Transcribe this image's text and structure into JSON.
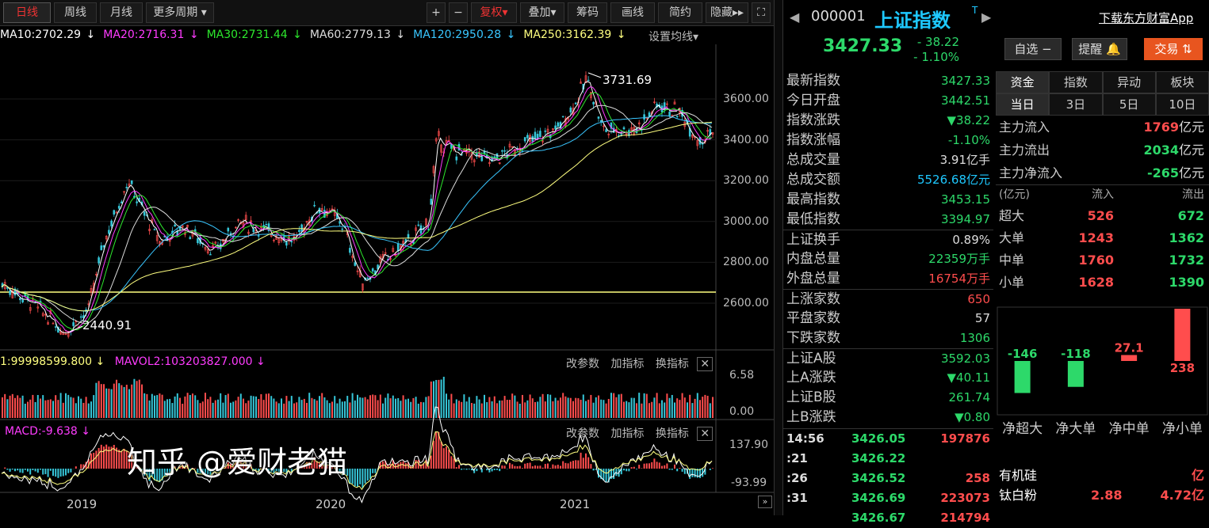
{
  "toolbar": {
    "tabs": [
      "日线",
      "周线",
      "月线",
      "更多周期"
    ],
    "right_buttons": [
      "+",
      "−",
      "复权",
      "叠加",
      "筹码",
      "画线",
      "简约",
      "隐藏"
    ]
  },
  "ma_line": [
    {
      "label": "MA10:2702.29",
      "color": "#ffffff"
    },
    {
      "label": "MA20:2716.31",
      "color": "#ff3cff"
    },
    {
      "label": "MA30:2731.44",
      "color": "#2de82d"
    },
    {
      "label": "MA60:2779.13",
      "color": "#dddddd"
    },
    {
      "label": "MA120:2950.28",
      "color": "#39c6ff"
    },
    {
      "label": "MA250:3162.39",
      "color": "#ffff80"
    }
  ],
  "ma_settings": "设置均线",
  "price_axis": [
    "3600.00",
    "3400.00",
    "3200.00",
    "3000.00",
    "2800.00",
    "2600.00"
  ],
  "annot_high": "3731.69",
  "annot_low": "2440.91",
  "vol_line": {
    "vol1": "1:99998599.800",
    "mavol2": "MAVOL2:103203827.000"
  },
  "vol_axis": [
    "6.58",
    "0.00"
  ],
  "macd_label": "MACD:-9.638",
  "macd_axis": [
    "137.90",
    "-93.99"
  ],
  "panel_buttons": [
    "改参数",
    "加指标",
    "换指标"
  ],
  "x_years": [
    "2019",
    "2020",
    "2021"
  ],
  "header": {
    "code": "000001",
    "name": "上证指数",
    "price": "3427.33",
    "change": "- 38.22",
    "pct": "- 1.10%",
    "download": "下载东方财富App",
    "btn_watch": "自选 −",
    "btn_alert": "提醒",
    "btn_trade": "交易"
  },
  "stats": [
    {
      "label": "最新指数",
      "value": "3427.33",
      "color": "#2dd96a"
    },
    {
      "label": "今日开盘",
      "value": "3442.51",
      "color": "#2dd96a"
    },
    {
      "label": "指数涨跌",
      "value": "▼38.22",
      "color": "#2dd96a"
    },
    {
      "label": "指数涨幅",
      "value": "-1.10%",
      "color": "#2dd96a"
    },
    {
      "label": "总成交量",
      "value": "3.91亿手",
      "color": "#ddd"
    },
    {
      "label": "总成交额",
      "value": "5526.68亿元",
      "color": "#1ec8ff"
    },
    {
      "label": "最高指数",
      "value": "3453.15",
      "color": "#2dd96a"
    },
    {
      "label": "最低指数",
      "value": "3394.97",
      "color": "#2dd96a"
    },
    {
      "label": "上证换手",
      "value": "0.89%",
      "color": "#ddd",
      "sep": true
    },
    {
      "label": "内盘总量",
      "value": "22359万手",
      "color": "#2dd96a"
    },
    {
      "label": "外盘总量",
      "value": "16754万手",
      "color": "#ff4d4d"
    },
    {
      "label": "上涨家数",
      "value": "650",
      "color": "#ff4d4d",
      "sep": true
    },
    {
      "label": "平盘家数",
      "value": "57",
      "color": "#ddd"
    },
    {
      "label": "下跌家数",
      "value": "1306",
      "color": "#2dd96a"
    },
    {
      "label": "上证A股",
      "value": "3592.03",
      "color": "#2dd96a",
      "sep": true
    },
    {
      "label": "上A涨跌",
      "value": "▼40.11",
      "color": "#2dd96a"
    },
    {
      "label": "上证B股",
      "value": "261.74",
      "color": "#2dd96a"
    },
    {
      "label": "上B涨跌",
      "value": "▼0.80",
      "color": "#2dd96a"
    }
  ],
  "ticks": [
    {
      "t": "14:56",
      "p": "3426.05",
      "v": "197876"
    },
    {
      "t": ":21",
      "p": "3426.22",
      "v": ""
    },
    {
      "t": ":26",
      "p": "3426.52",
      "v": "258"
    },
    {
      "t": ":31",
      "p": "3426.69",
      "v": "223073"
    },
    {
      "t": "",
      "p": "3426.67",
      "v": "214794"
    }
  ],
  "fund": {
    "tabs1": [
      "资金",
      "指数",
      "异动",
      "板块"
    ],
    "tabs2": [
      "当日",
      "3日",
      "5日",
      "10日"
    ],
    "main": [
      {
        "l": "主力流入",
        "v": "1769",
        "u": "亿元",
        "color": "#ff4d4d"
      },
      {
        "l": "主力流出",
        "v": "2034",
        "u": "亿元",
        "color": "#2dd96a"
      },
      {
        "l": "主力净流入",
        "v": "-265",
        "u": "亿元",
        "color": "#2dd96a"
      }
    ],
    "flow_header": {
      "unit": "(亿元)",
      "in": "流入",
      "out": "流出"
    },
    "flow": [
      {
        "l": "超大",
        "a": "526",
        "b": "672"
      },
      {
        "l": "大单",
        "a": "1243",
        "b": "1362"
      },
      {
        "l": "中单",
        "a": "1760",
        "b": "1732"
      },
      {
        "l": "小单",
        "a": "1628",
        "b": "1390"
      }
    ],
    "bars": [
      {
        "value": -146,
        "label": "-146",
        "color": "#2dd96a"
      },
      {
        "value": -118,
        "label": "-118",
        "color": "#2dd96a"
      },
      {
        "value": 27.1,
        "label": "27.1",
        "color": "#ff4d4d"
      },
      {
        "value": 238,
        "label": "238",
        "color": "#ff4d4d"
      }
    ],
    "bar_names": [
      "净超大",
      "净大单",
      "净中单",
      "净小单"
    ],
    "sectors": [
      {
        "name": "有机硅",
        "a": "",
        "b": "亿"
      },
      {
        "name": "钛白粉",
        "a": "2.88",
        "b": "4.72亿"
      }
    ]
  },
  "watermark": "知乎 @爱财老猫"
}
